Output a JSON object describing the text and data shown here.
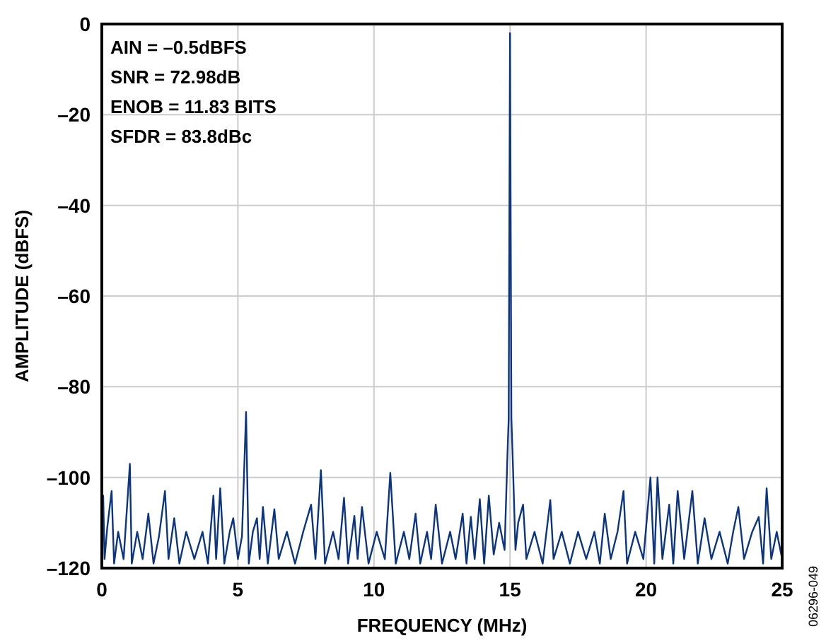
{
  "chart_data": {
    "type": "line",
    "xlabel": "FREQUENCY (MHz)",
    "ylabel": "AMPLITUDE (dBFS)",
    "annotations": [
      "AIN = –0.5dBFS",
      "SNR = 72.98dB",
      "ENOB = 11.83 BITS",
      "SFDR = 83.8dBc",
      "06296-049"
    ],
    "xlim": [
      0,
      25
    ],
    "xticks": [
      0,
      5,
      10,
      15,
      20,
      25
    ],
    "ylim": [
      -120,
      0
    ],
    "yticks": [
      {
        "value": -120,
        "label": "–120"
      },
      {
        "value": -100,
        "label": "–100"
      },
      {
        "value": -80,
        "label": "–80"
      },
      {
        "value": -60,
        "label": "–60"
      },
      {
        "value": -40,
        "label": "–40"
      },
      {
        "value": -20,
        "label": "–20"
      },
      0
    ],
    "grid": true,
    "marker": "none",
    "line_style": "solid",
    "series": [
      {
        "color": "#0b3580",
        "x": [
          0,
          0.05,
          0.1,
          0.2,
          0.36,
          0.45,
          0.6,
          0.8,
          1.03,
          1.1,
          1.3,
          1.5,
          1.71,
          1.9,
          2.1,
          2.32,
          2.45,
          2.66,
          2.85,
          3.1,
          3.4,
          3.7,
          3.9,
          4.1,
          4.2,
          4.35,
          4.5,
          4.7,
          4.83,
          5.0,
          5.15,
          5.3,
          5.4,
          5.55,
          5.7,
          5.8,
          5.92,
          6.1,
          6.34,
          6.5,
          6.8,
          7.1,
          7.4,
          7.69,
          7.85,
          8.05,
          8.2,
          8.5,
          8.7,
          8.9,
          9.05,
          9.28,
          9.4,
          9.56,
          9.8,
          10.1,
          10.4,
          10.6,
          10.8,
          11.1,
          11.3,
          11.53,
          11.7,
          11.95,
          12.1,
          12.27,
          12.5,
          12.8,
          13.0,
          13.26,
          13.4,
          13.56,
          13.7,
          13.89,
          14.05,
          14.22,
          14.4,
          14.6,
          14.8,
          14.9,
          14.95,
          15.0,
          15.05,
          15.1,
          15.2,
          15.3,
          15.48,
          15.6,
          15.9,
          16.2,
          16.48,
          16.6,
          16.9,
          17.2,
          17.5,
          17.8,
          18.1,
          18.3,
          18.48,
          18.7,
          18.95,
          19.17,
          19.3,
          19.6,
          19.9,
          20.16,
          20.3,
          20.42,
          20.6,
          20.85,
          21.0,
          21.16,
          21.4,
          21.7,
          21.9,
          22.15,
          22.4,
          22.7,
          23.0,
          23.2,
          23.39,
          23.6,
          23.9,
          24.14,
          24.3,
          24.43,
          24.6,
          24.8,
          25
        ],
        "values": [
          -112,
          -104,
          -118,
          -111,
          -103,
          -119,
          -112,
          -118,
          -97,
          -119,
          -112,
          -118,
          -108,
          -119,
          -113,
          -103,
          -118,
          -109,
          -119,
          -112,
          -118,
          -112,
          -119,
          -104,
          -118,
          -102.4,
          -119,
          -112,
          -109,
          -118,
          -113,
          -85.6,
          -119,
          -112,
          -109,
          -118,
          -106.5,
          -119,
          -107,
          -118,
          -112,
          -119,
          -112,
          -106,
          -118,
          -98.4,
          -119,
          -112,
          -118,
          -104.5,
          -119,
          -108.5,
          -118,
          -106.5,
          -119,
          -112,
          -118,
          -99,
          -119,
          -112,
          -118,
          -108,
          -119,
          -112,
          -118,
          -106,
          -119,
          -112,
          -118,
          -108,
          -119,
          -108.7,
          -118,
          -104.8,
          -119,
          -104,
          -117,
          -110,
          -116,
          -96,
          -87,
          -2,
          -87,
          -96,
          -116,
          -110,
          -106,
          -118,
          -112,
          -119,
          -105,
          -118,
          -112,
          -119,
          -112,
          -118,
          -112,
          -119,
          -108,
          -118,
          -112,
          -103,
          -119,
          -112,
          -118,
          -100,
          -119,
          -100,
          -118,
          -106,
          -119,
          -103,
          -118,
          -103,
          -119,
          -109,
          -118,
          -112,
          -119,
          -112,
          -106.5,
          -118,
          -112,
          -108.7,
          -119,
          -102.4,
          -118,
          -112,
          -118
        ]
      }
    ]
  }
}
